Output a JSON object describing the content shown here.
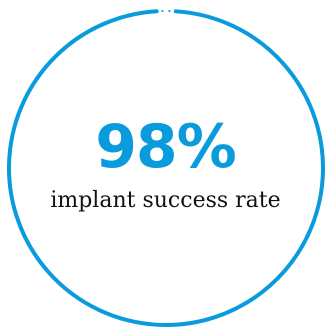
{
  "stat": {
    "value": "98%",
    "caption": "implant success rate",
    "progress_fraction": 0.98
  },
  "colors": {
    "accent": "#0a9bdc",
    "text": "#111111",
    "background": "#ffffff"
  }
}
